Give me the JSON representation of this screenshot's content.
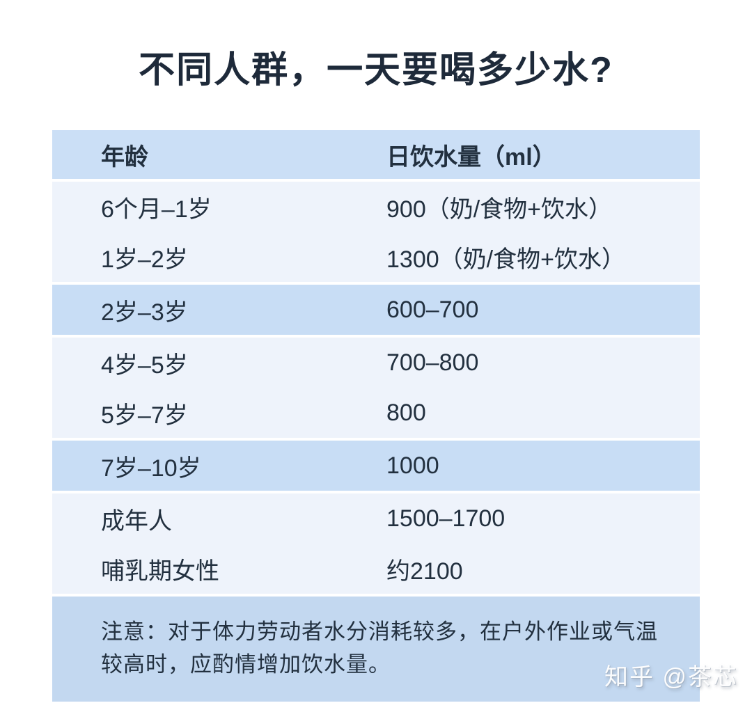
{
  "page": {
    "title": "不同人群，一天要喝多少水?",
    "watermark": "知乎 @茶芯"
  },
  "table": {
    "headers": [
      "年龄",
      "日饮水量（ml）"
    ],
    "rows": [
      {
        "age": "6个月–1岁",
        "amount": "900（奶/食物+饮水）",
        "highlight": false
      },
      {
        "age": "1岁–2岁",
        "amount": "1300（奶/食物+饮水）",
        "highlight": false
      },
      {
        "age": "2岁–3岁",
        "amount": "600–700",
        "highlight": true
      },
      {
        "age": "4岁–5岁",
        "amount": "700–800",
        "highlight": false
      },
      {
        "age": "5岁–7岁",
        "amount": "800",
        "highlight": false
      },
      {
        "age": "7岁–10岁",
        "amount": "1000",
        "highlight": true
      },
      {
        "age": "成年人",
        "amount": "1500–1700",
        "highlight": false
      },
      {
        "age": "哺乳期女性",
        "amount": "约2100",
        "highlight": false
      }
    ],
    "note": "注意：对于体力劳动者水分消耗较多，在户外作业或气温较高时，应酌情增加饮水量。"
  },
  "chart_data": {
    "type": "table",
    "title": "不同人群，一天要喝多少水?",
    "columns": [
      "年龄",
      "日饮水量（ml）"
    ],
    "rows": [
      [
        "6个月–1岁",
        "900（奶/食物+饮水）"
      ],
      [
        "1岁–2岁",
        "1300（奶/食物+饮水）"
      ],
      [
        "2岁–3岁",
        "600–700"
      ],
      [
        "4岁–5岁",
        "700–800"
      ],
      [
        "5岁–7岁",
        "800"
      ],
      [
        "7岁–10岁",
        "1000"
      ],
      [
        "成年人",
        "1500–1700"
      ],
      [
        "哺乳期女性",
        "约2100"
      ]
    ],
    "note": "注意：对于体力劳动者水分消耗较多，在户外作业或气温较高时，应酌情增加饮水量。",
    "highlighted_rows": [
      2,
      5
    ],
    "watermark": "知乎 @茶芯"
  },
  "colors": {
    "page_bg": "#ffffff",
    "title": "#1e2a3a",
    "text": "#22303f",
    "header_bg": "#cbdff6",
    "row_light_bg": "#eef3fb",
    "row_highlight_bg": "#c8ddf5",
    "note_bg": "#c3d8f0"
  }
}
